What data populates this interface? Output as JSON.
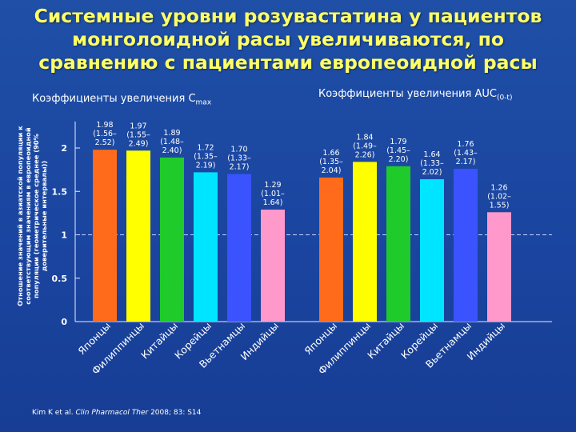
{
  "title": {
    "line1": "Системные уровни розувастатина у пациентов",
    "line2": "монголоидной расы увеличиваются, по",
    "line3": "сравнению с пациентами европеоидной расы"
  },
  "source": {
    "authors": "Kim K et al. ",
    "journal": "Clin Pharmacol Ther",
    "rest": " 2008; 83: S14"
  },
  "chart_data": {
    "type": "bar",
    "ylabel": "Отношение значений в азиатской популяции к соответствующим значениям в европеоидной популяции (геометрическое среднее (90% доверительные интервалы))",
    "ylim": [
      0,
      2.25
    ],
    "yticks": [
      0,
      0.5,
      1,
      1.5,
      2
    ],
    "ytick_labels": [
      "0",
      "0.5",
      "1",
      "1.5",
      "2"
    ],
    "reference_line": 1,
    "grid": false,
    "categories": [
      "Японцы",
      "Филиппинцы",
      "Китайцы",
      "Корейцы",
      "Вьетнамцы",
      "Индийцы"
    ],
    "colors": [
      "#ff6b1a",
      "#ffff00",
      "#1fcb2b",
      "#00e5ff",
      "#3b52ff",
      "#ff99cc"
    ],
    "panels": [
      {
        "title": "Коэффициенты увеличения  C",
        "title_sub": "max",
        "values": [
          1.98,
          1.97,
          1.89,
          1.72,
          1.7,
          1.29
        ],
        "labels": [
          [
            "1.98",
            "(1.56–",
            "2.52)"
          ],
          [
            "1.97",
            "(1.55–",
            "2.49)"
          ],
          [
            "1.89",
            "(1.48–",
            "2.40)"
          ],
          [
            "1.72",
            "(1.35–",
            "2.19)"
          ],
          [
            "1.70",
            "(1.33–",
            "2.17)"
          ],
          [
            "1.29",
            "(1.01–",
            "1.64)"
          ]
        ]
      },
      {
        "title": "Коэффициенты увеличения AUC",
        "title_sub": "(0-t)",
        "values": [
          1.66,
          1.84,
          1.79,
          1.64,
          1.76,
          1.26
        ],
        "labels": [
          [
            "1.66",
            "(1.35–",
            "2.04)"
          ],
          [
            "1.84",
            "(1.49–",
            "2.26)"
          ],
          [
            "1.79",
            "(1.45–",
            "2.20)"
          ],
          [
            "1.64",
            "(1.33–",
            "2.02)"
          ],
          [
            "1.76",
            "(1.43–",
            "2.17)"
          ],
          [
            "1.26",
            "(1.02–",
            "1.55)"
          ]
        ]
      }
    ]
  }
}
